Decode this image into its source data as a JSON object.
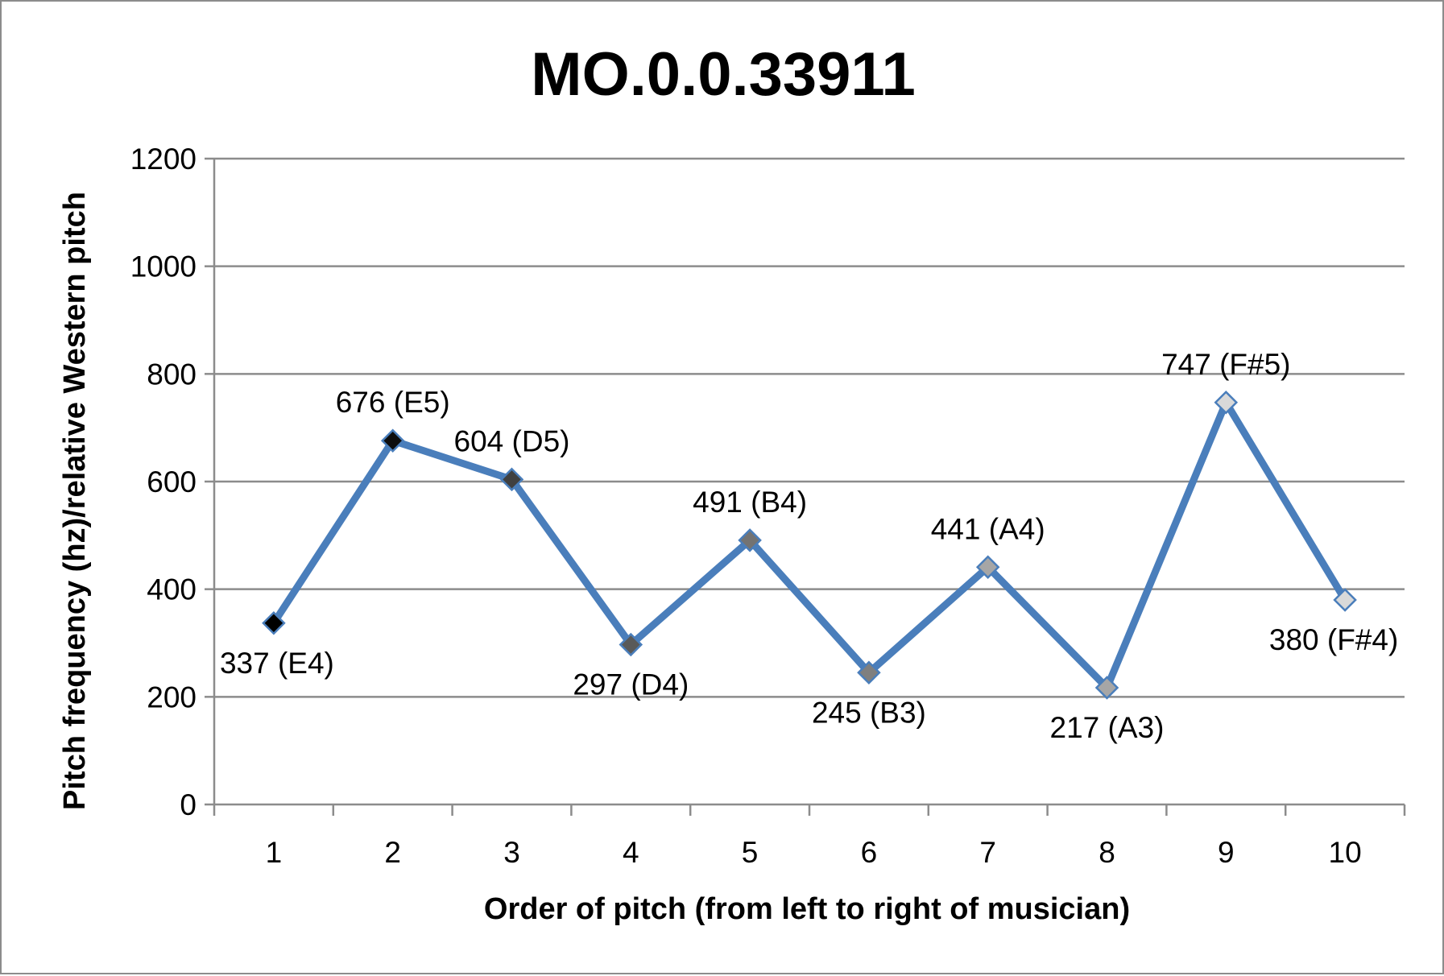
{
  "colors": {
    "series_line": "#4a7ebb",
    "marker_stroke": "#4a7ebb",
    "grid": "#8c8c8c",
    "frame": "#8c8c8c"
  },
  "chart_data": {
    "type": "line",
    "title": "MO.0.0.33911",
    "xlabel": "Order of pitch (from left to right of musician)",
    "ylabel": "Pitch frequency (hz)/relative Western pitch",
    "categories": [
      "1",
      "2",
      "3",
      "4",
      "5",
      "6",
      "7",
      "8",
      "9",
      "10"
    ],
    "ylim": [
      0,
      1200
    ],
    "yticks": [
      "0",
      "200",
      "400",
      "600",
      "800",
      "1000",
      "1200"
    ],
    "grid": true,
    "legend": "none",
    "series": [
      {
        "values": [
          337,
          676,
          604,
          297,
          491,
          245,
          441,
          217,
          747,
          380
        ],
        "labels": [
          "337 (E4)",
          "676 (E5)",
          "604 (D5)",
          "297 (D4)",
          "491 (B4)",
          "245 (B3)",
          "441 (A4)",
          "217 (A3)",
          "747 (F#5)",
          "380 (F#4)"
        ],
        "label_positions": [
          "below",
          "above",
          "above",
          "below",
          "above",
          "below",
          "above",
          "below",
          "above",
          "below"
        ],
        "marker": "diamond",
        "marker_colors": [
          "#000000",
          "#0d0d0d",
          "#404040",
          "#595959",
          "#737373",
          "#7f7f7f",
          "#a6a6a6",
          "#a6a6a6",
          "#d9d9d9",
          "#d9d9d9"
        ]
      }
    ]
  }
}
